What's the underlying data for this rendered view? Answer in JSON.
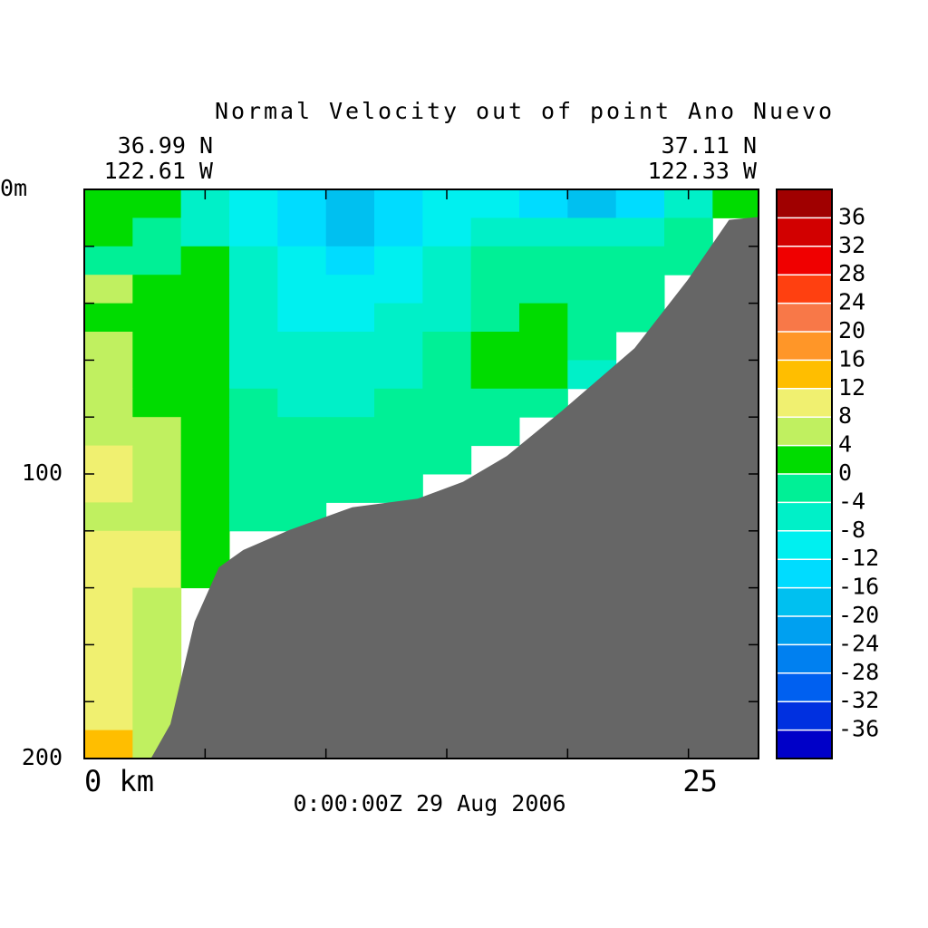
{
  "chart_data": {
    "type": "contour",
    "title": "Normal Velocity out of point Ano Nuevo",
    "left_lat": "36.99 N",
    "left_lon": "122.61 W",
    "right_lat": "37.11 N",
    "right_lon": "122.33 W",
    "time": "0:00:00Z  29 Aug 2006",
    "xlim": [
      0,
      27.9
    ],
    "ylim": [
      0,
      200
    ],
    "xticks": [
      {
        "value": 0,
        "label": "0 km"
      },
      25
    ],
    "xminorticks": [
      5,
      10,
      15,
      20
    ],
    "yticks": [
      {
        "value": 0,
        "label": "0m"
      },
      100,
      200
    ],
    "yminorticks": [
      20,
      40,
      60,
      80,
      120,
      140,
      160,
      180
    ],
    "x": [
      1,
      3,
      5,
      7,
      9,
      11,
      13,
      15,
      17,
      19,
      21,
      23,
      25,
      27
    ],
    "depth": [
      5,
      15,
      25,
      35,
      45,
      55,
      65,
      75,
      85,
      95,
      105,
      115,
      125,
      135,
      145,
      155,
      165,
      175,
      185,
      195
    ],
    "z": [
      [
        2,
        2,
        -6,
        -10,
        -14,
        -18,
        -14,
        -10,
        -10,
        -14,
        -18,
        -14,
        -6,
        2
      ],
      [
        2,
        -2,
        -6,
        -10,
        -14,
        -18,
        -14,
        -10,
        -6,
        -6,
        -6,
        -6,
        -2,
        null
      ],
      [
        -2,
        -2,
        2,
        -6,
        -10,
        -14,
        -10,
        -6,
        -2,
        -2,
        -2,
        -2,
        -2,
        null
      ],
      [
        6,
        2,
        2,
        -6,
        -10,
        -10,
        -10,
        -6,
        -2,
        -2,
        -2,
        -2,
        null,
        null
      ],
      [
        2,
        2,
        2,
        -6,
        -10,
        -10,
        -6,
        -6,
        -2,
        2,
        -2,
        -2,
        null,
        null
      ],
      [
        6,
        2,
        2,
        -6,
        -6,
        -6,
        -6,
        -2,
        2,
        2,
        -2,
        null,
        null,
        null
      ],
      [
        6,
        2,
        2,
        -6,
        -6,
        -6,
        -6,
        -2,
        2,
        2,
        -6,
        null,
        null,
        null
      ],
      [
        6,
        2,
        2,
        -2,
        -6,
        -6,
        -2,
        -2,
        -2,
        -2,
        null,
        null,
        null,
        null
      ],
      [
        6,
        6,
        2,
        -2,
        -2,
        -2,
        -2,
        -2,
        -2,
        null,
        null,
        null,
        null,
        null
      ],
      [
        10,
        6,
        2,
        -2,
        -2,
        -2,
        -2,
        -2,
        null,
        null,
        null,
        null,
        null,
        null
      ],
      [
        10,
        6,
        2,
        -2,
        -2,
        -2,
        -2,
        null,
        null,
        null,
        null,
        null,
        null,
        null
      ],
      [
        6,
        6,
        2,
        -2,
        -2,
        null,
        null,
        null,
        null,
        null,
        null,
        null,
        null,
        null
      ],
      [
        10,
        10,
        2,
        null,
        null,
        null,
        null,
        null,
        null,
        null,
        null,
        null,
        null,
        null
      ],
      [
        10,
        10,
        2,
        null,
        null,
        null,
        null,
        null,
        null,
        null,
        null,
        null,
        null,
        null
      ],
      [
        10,
        6,
        null,
        null,
        null,
        null,
        null,
        null,
        null,
        null,
        null,
        null,
        null,
        null
      ],
      [
        10,
        6,
        null,
        null,
        null,
        null,
        null,
        null,
        null,
        null,
        null,
        null,
        null,
        null
      ],
      [
        10,
        6,
        null,
        null,
        null,
        null,
        null,
        null,
        null,
        null,
        null,
        null,
        null,
        null
      ],
      [
        10,
        6,
        null,
        null,
        null,
        null,
        null,
        null,
        null,
        null,
        null,
        null,
        null,
        null
      ],
      [
        10,
        6,
        null,
        null,
        null,
        null,
        null,
        null,
        null,
        null,
        null,
        null,
        null,
        null
      ],
      [
        14,
        6,
        null,
        null,
        null,
        null,
        null,
        null,
        null,
        null,
        null,
        null,
        null,
        null
      ]
    ],
    "bathymetry": {
      "x": [
        2.8,
        3.6,
        4.6,
        5.6,
        6.6,
        8.5,
        11.1,
        13.8,
        15.7,
        17.5,
        19.8,
        22.8,
        25,
        26.7,
        27.9
      ],
      "depth": [
        200,
        188,
        152,
        133,
        127,
        120,
        112,
        109,
        103,
        94,
        78,
        56,
        32,
        11,
        10
      ],
      "color": "#666666"
    },
    "colorbar": {
      "levels": [
        -36,
        -32,
        -28,
        -24,
        -20,
        -16,
        -12,
        -8,
        -4,
        0,
        4,
        8,
        12,
        16,
        20,
        24,
        28,
        32,
        36
      ],
      "colors": [
        "#0000c8",
        "#0030e0",
        "#0060f0",
        "#0080f0",
        "#00a0f0",
        "#00c0f0",
        "#00dcff",
        "#00f0f0",
        "#00f0c8",
        "#00f096",
        "#00dc00",
        "#c0f060",
        "#f0f070",
        "#ffbe00",
        "#ff9628",
        "#f87848",
        "#ff4010",
        "#f00000",
        "#d20000",
        "#a00000"
      ]
    }
  }
}
